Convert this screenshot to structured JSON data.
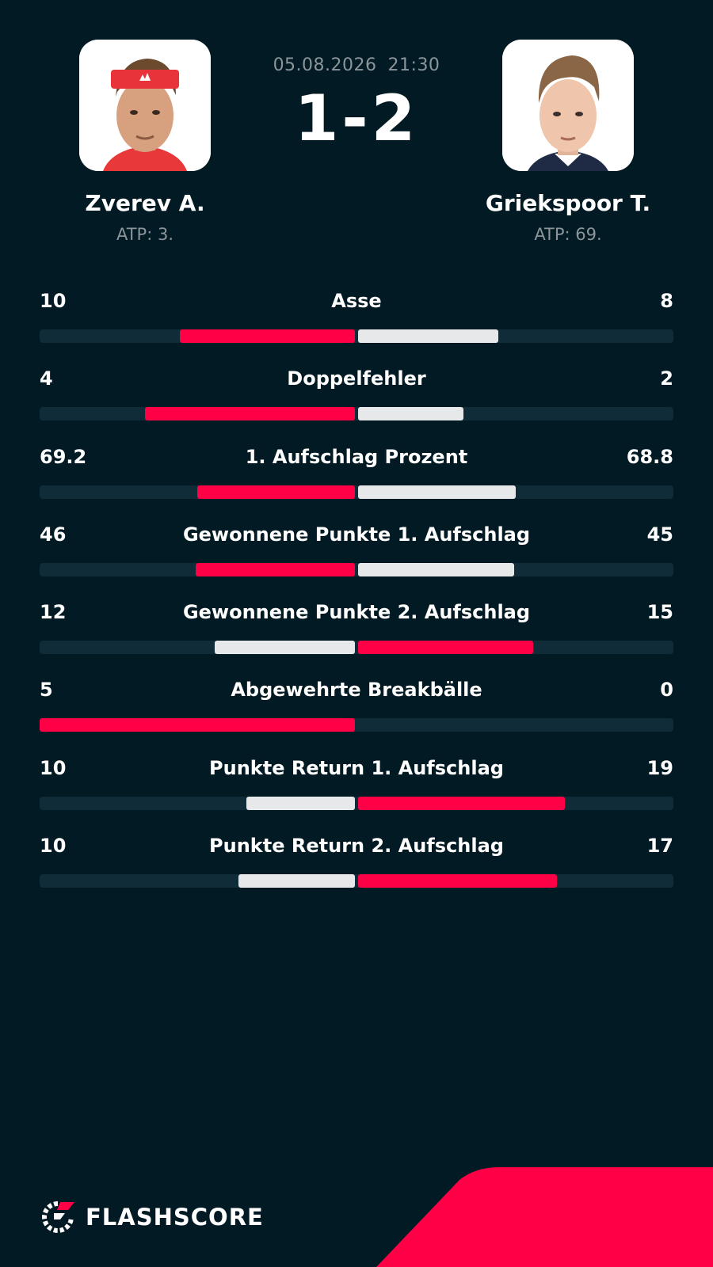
{
  "match": {
    "date": "05.08.2026",
    "time": "21:30",
    "score": "1-2"
  },
  "home": {
    "name": "Zverev A.",
    "rank": "ATP: 3."
  },
  "away": {
    "name": "Griekspoor T.",
    "rank": "ATP: 69."
  },
  "colors": {
    "background": "#011a24",
    "track": "#0f2c38",
    "accent": "#ff0046",
    "neutral": "#e6e8e9",
    "muted": "#8c959a"
  },
  "stats": [
    {
      "label": "Asse",
      "home": "10",
      "away": "8",
      "home_share": 0.556,
      "away_share": 0.444,
      "home_leads": true
    },
    {
      "label": "Doppelfehler",
      "home": "4",
      "away": "2",
      "home_share": 0.667,
      "away_share": 0.333,
      "home_leads": true
    },
    {
      "label": "1. Aufschlag Prozent",
      "home": "69.2",
      "away": "68.8",
      "home_share": 0.501,
      "away_share": 0.499,
      "home_leads": true
    },
    {
      "label": "Gewonnene Punkte 1. Aufschlag",
      "home": "46",
      "away": "45",
      "home_share": 0.505,
      "away_share": 0.495,
      "home_leads": true
    },
    {
      "label": "Gewonnene Punkte 2. Aufschlag",
      "home": "12",
      "away": "15",
      "home_share": 0.444,
      "away_share": 0.556,
      "home_leads": false
    },
    {
      "label": "Abgewehrte Breakbälle",
      "home": "5",
      "away": "0",
      "home_share": 1.0,
      "away_share": 0.0,
      "home_leads": true
    },
    {
      "label": "Punkte Return 1. Aufschlag",
      "home": "10",
      "away": "19",
      "home_share": 0.345,
      "away_share": 0.655,
      "home_leads": false
    },
    {
      "label": "Punkte Return 2. Aufschlag",
      "home": "10",
      "away": "17",
      "home_share": 0.37,
      "away_share": 0.63,
      "home_leads": false
    }
  ],
  "brand": {
    "name": "FLASHSCORE",
    "icon": "flashscore-logo-icon"
  }
}
